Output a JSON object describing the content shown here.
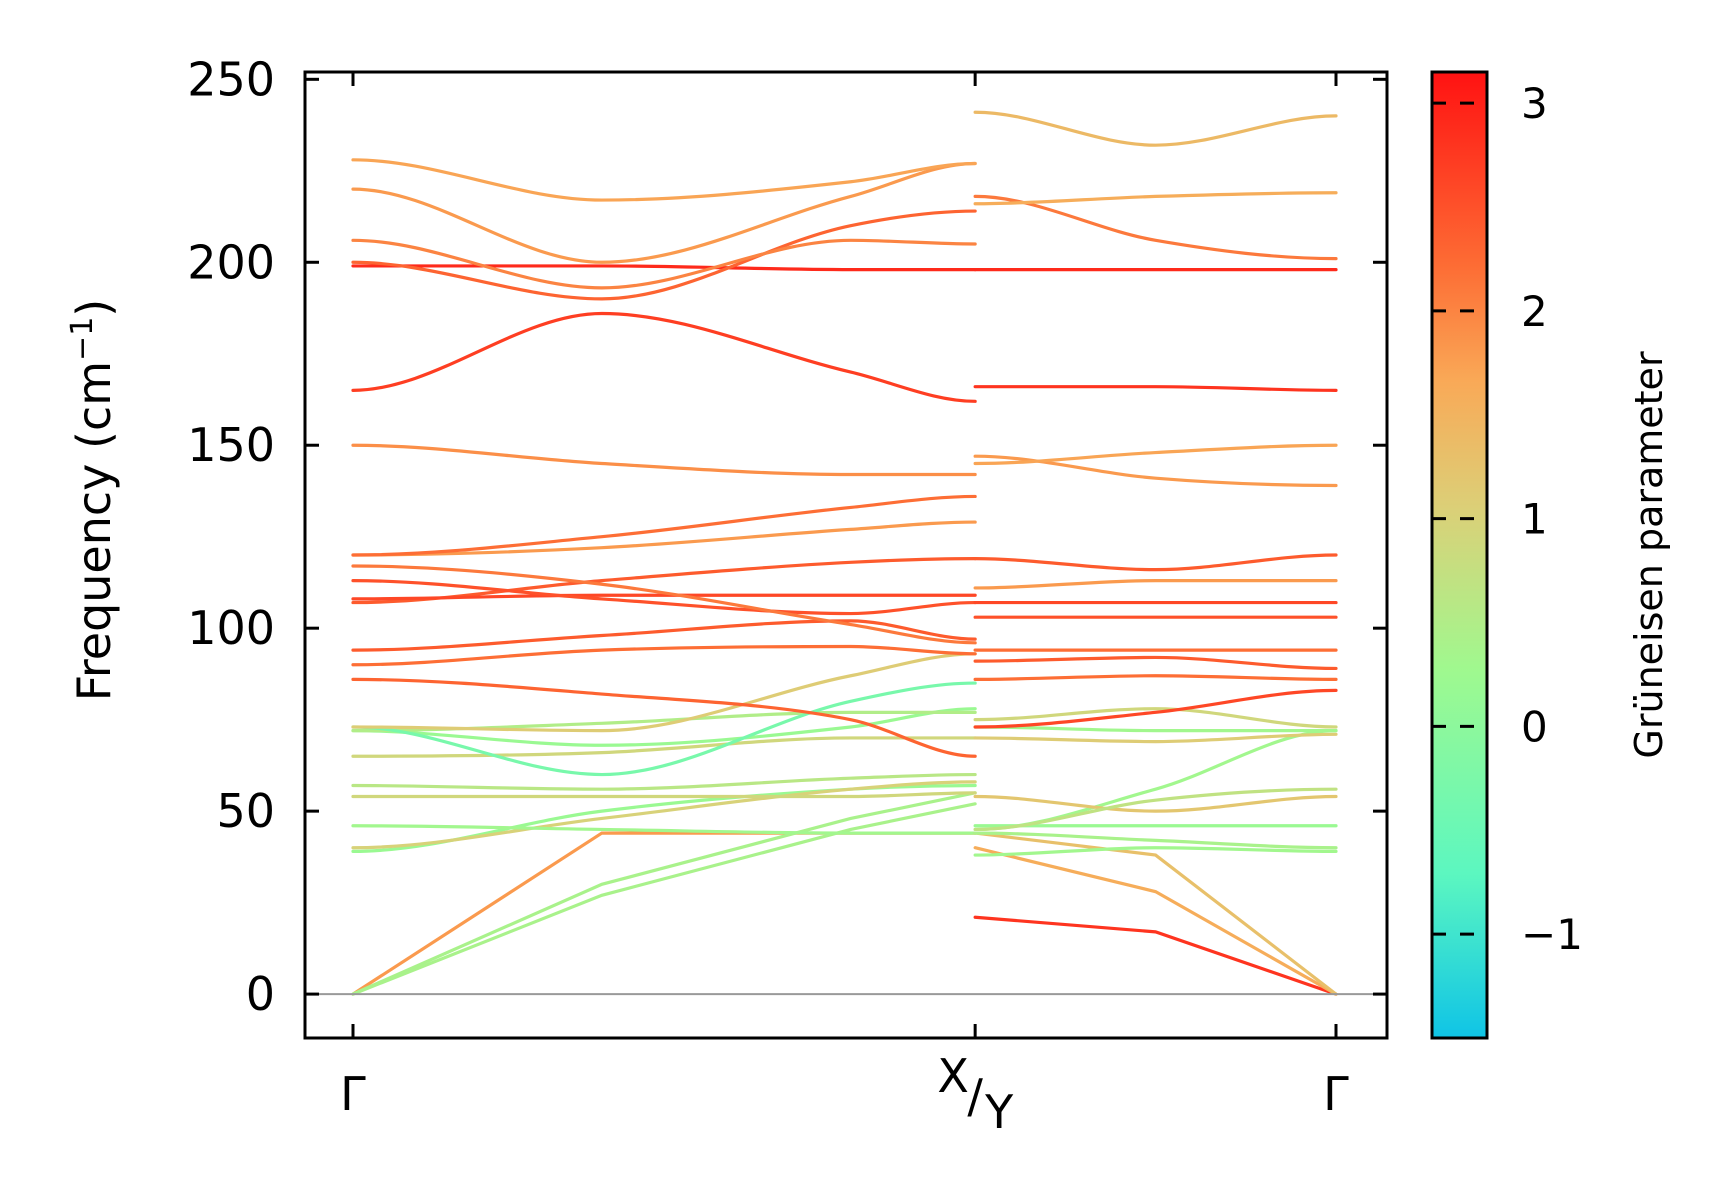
{
  "chart_data": {
    "type": "line",
    "title": "",
    "ylabel": "Frequency (cm",
    "ylabel_sup": "−1",
    "ylabel_end": ")",
    "ylim": [
      -12,
      252
    ],
    "yticks": [
      0,
      50,
      100,
      150,
      200,
      250
    ],
    "xtick_labels": [
      "Γ",
      "X",
      "Y",
      "Γ"
    ],
    "x_break": 1.0,
    "x_range": [
      0,
      1.58
    ],
    "colorbar": {
      "label": "Grüneisen parameter",
      "range": [
        -1.5,
        3.15
      ],
      "ticks": [
        -1,
        0,
        1,
        2,
        3
      ],
      "tick_labels": [
        "−1",
        "0",
        "1",
        "2",
        "3"
      ],
      "colormap": [
        "#0fc4e6",
        "#5cf7c0",
        "#9ff98f",
        "#dccf77",
        "#f9a957",
        "#fd6c34",
        "#ff1212"
      ]
    },
    "series": [
      {
        "segment": 1,
        "g": 1.8,
        "x": [
          0,
          0.4,
          0.8,
          1.0
        ],
        "y": [
          0,
          44,
          44,
          44
        ]
      },
      {
        "segment": 1,
        "g": 0.4,
        "x": [
          0,
          0.4,
          0.8,
          1.0
        ],
        "y": [
          0,
          30,
          48,
          55
        ]
      },
      {
        "segment": 1,
        "g": 0.4,
        "x": [
          0,
          0.4,
          0.8,
          1.0
        ],
        "y": [
          0,
          27,
          45,
          52
        ]
      },
      {
        "segment": 1,
        "g": 0.2,
        "x": [
          0,
          0.4,
          0.8,
          1.0
        ],
        "y": [
          39,
          50,
          56,
          57
        ]
      },
      {
        "segment": 1,
        "g": 1.0,
        "x": [
          0,
          0.4,
          0.8,
          1.0
        ],
        "y": [
          40,
          48,
          56,
          58
        ]
      },
      {
        "segment": 1,
        "g": 0.3,
        "x": [
          0,
          0.4,
          0.8,
          1.0
        ],
        "y": [
          46,
          45,
          44,
          44
        ]
      },
      {
        "segment": 1,
        "g": 0.9,
        "x": [
          0,
          0.4,
          0.8,
          1.0
        ],
        "y": [
          54,
          54,
          54,
          55
        ]
      },
      {
        "segment": 1,
        "g": 0.6,
        "x": [
          0,
          0.4,
          0.8,
          1.0
        ],
        "y": [
          57,
          56,
          59,
          60
        ]
      },
      {
        "segment": 1,
        "g": 0.9,
        "x": [
          0,
          0.4,
          0.8,
          1.0
        ],
        "y": [
          65,
          66,
          70,
          70
        ]
      },
      {
        "segment": 1,
        "g": 0.2,
        "x": [
          0,
          0.4,
          0.8,
          1.0
        ],
        "y": [
          72,
          68,
          73,
          78
        ]
      },
      {
        "segment": 1,
        "g": 0.5,
        "x": [
          0,
          0.4,
          0.8,
          1.0
        ],
        "y": [
          72,
          74,
          77,
          77
        ]
      },
      {
        "segment": 1,
        "g": -0.3,
        "x": [
          0,
          0.4,
          0.8,
          1.0
        ],
        "y": [
          73,
          60,
          80,
          85
        ]
      },
      {
        "segment": 1,
        "g": 1.1,
        "x": [
          0,
          0.4,
          0.8,
          1.0
        ],
        "y": [
          73,
          72,
          87,
          93
        ]
      },
      {
        "segment": 1,
        "g": 2.3,
        "x": [
          0,
          0.4,
          0.8,
          1.0
        ],
        "y": [
          86,
          82,
          75,
          65
        ]
      },
      {
        "segment": 1,
        "g": 2.2,
        "x": [
          0,
          0.4,
          0.8,
          1.0
        ],
        "y": [
          90,
          94,
          95,
          93
        ]
      },
      {
        "segment": 1,
        "g": 2.4,
        "x": [
          0,
          0.4,
          0.8,
          1.0
        ],
        "y": [
          94,
          98,
          102,
          97
        ]
      },
      {
        "segment": 1,
        "g": 2.4,
        "x": [
          0,
          0.4,
          0.8,
          1.0
        ],
        "y": [
          107,
          113,
          118,
          119
        ]
      },
      {
        "segment": 1,
        "g": 2.6,
        "x": [
          0,
          0.4,
          0.8,
          1.0
        ],
        "y": [
          108,
          109,
          109,
          109
        ]
      },
      {
        "segment": 1,
        "g": 2.5,
        "x": [
          0,
          0.4,
          0.8,
          1.0
        ],
        "y": [
          113,
          108,
          104,
          107
        ]
      },
      {
        "segment": 1,
        "g": 2.1,
        "x": [
          0,
          0.4,
          0.8,
          1.0
        ],
        "y": [
          117,
          112,
          101,
          96
        ]
      },
      {
        "segment": 1,
        "g": 1.8,
        "x": [
          0,
          0.4,
          0.8,
          1.0
        ],
        "y": [
          120,
          122,
          127,
          129
        ]
      },
      {
        "segment": 1,
        "g": 2.2,
        "x": [
          0,
          0.4,
          0.8,
          1.0
        ],
        "y": [
          120,
          125,
          133,
          136
        ]
      },
      {
        "segment": 1,
        "g": 1.9,
        "x": [
          0,
          0.4,
          0.8,
          1.0
        ],
        "y": [
          150,
          145,
          142,
          142
        ]
      },
      {
        "segment": 1,
        "g": 2.7,
        "x": [
          0,
          0.4,
          0.8,
          1.0
        ],
        "y": [
          165,
          186,
          170,
          162
        ]
      },
      {
        "segment": 1,
        "g": 2.9,
        "x": [
          0,
          0.4,
          0.8,
          1.0
        ],
        "y": [
          199,
          199,
          198,
          198
        ]
      },
      {
        "segment": 1,
        "g": 2.3,
        "x": [
          0,
          0.4,
          0.8,
          1.0
        ],
        "y": [
          200,
          190,
          210,
          214
        ]
      },
      {
        "segment": 1,
        "g": 2.0,
        "x": [
          0,
          0.4,
          0.8,
          1.0
        ],
        "y": [
          206,
          193,
          206,
          205
        ]
      },
      {
        "segment": 1,
        "g": 1.8,
        "x": [
          0,
          0.4,
          0.8,
          1.0
        ],
        "y": [
          220,
          200,
          218,
          227
        ]
      },
      {
        "segment": 1,
        "g": 1.7,
        "x": [
          0,
          0.4,
          0.8,
          1.0
        ],
        "y": [
          228,
          217,
          222,
          227
        ]
      },
      {
        "segment": 2,
        "g": 2.8,
        "x": [
          1.0,
          1.29,
          1.58
        ],
        "y": [
          21,
          17,
          0
        ]
      },
      {
        "segment": 2,
        "g": 1.6,
        "x": [
          1.0,
          1.29,
          1.58
        ],
        "y": [
          40,
          28,
          0
        ]
      },
      {
        "segment": 2,
        "g": 1.3,
        "x": [
          1.0,
          1.29,
          1.58
        ],
        "y": [
          44,
          38,
          0
        ]
      },
      {
        "segment": 2,
        "g": 0.3,
        "x": [
          1.0,
          1.29,
          1.58
        ],
        "y": [
          38,
          40,
          39
        ]
      },
      {
        "segment": 2,
        "g": 0.4,
        "x": [
          1.0,
          1.29,
          1.58
        ],
        "y": [
          44,
          42,
          40
        ]
      },
      {
        "segment": 2,
        "g": 0.2,
        "x": [
          1.0,
          1.29,
          1.58
        ],
        "y": [
          46,
          46,
          46
        ]
      },
      {
        "segment": 2,
        "g": 0.3,
        "x": [
          1.0,
          1.29,
          1.58
        ],
        "y": [
          45,
          56,
          72
        ]
      },
      {
        "segment": 2,
        "g": 1.2,
        "x": [
          1.0,
          1.29,
          1.58
        ],
        "y": [
          54,
          50,
          54
        ]
      },
      {
        "segment": 2,
        "g": 0.7,
        "x": [
          1.0,
          1.29,
          1.58
        ],
        "y": [
          45,
          53,
          56
        ]
      },
      {
        "segment": 2,
        "g": 1.1,
        "x": [
          1.0,
          1.29,
          1.58
        ],
        "y": [
          70,
          69,
          71
        ]
      },
      {
        "segment": 2,
        "g": 0.3,
        "x": [
          1.0,
          1.29,
          1.58
        ],
        "y": [
          73,
          72,
          72
        ]
      },
      {
        "segment": 2,
        "g": 0.9,
        "x": [
          1.0,
          1.29,
          1.58
        ],
        "y": [
          75,
          78,
          73
        ]
      },
      {
        "segment": 2,
        "g": 2.6,
        "x": [
          1.0,
          1.29,
          1.58
        ],
        "y": [
          73,
          77,
          83
        ]
      },
      {
        "segment": 2,
        "g": 2.2,
        "x": [
          1.0,
          1.29,
          1.58
        ],
        "y": [
          86,
          87,
          86
        ]
      },
      {
        "segment": 2,
        "g": 2.4,
        "x": [
          1.0,
          1.29,
          1.58
        ],
        "y": [
          91,
          92,
          89
        ]
      },
      {
        "segment": 2,
        "g": 2.2,
        "x": [
          1.0,
          1.29,
          1.58
        ],
        "y": [
          94,
          94,
          94
        ]
      },
      {
        "segment": 2,
        "g": 2.5,
        "x": [
          1.0,
          1.29,
          1.58
        ],
        "y": [
          103,
          103,
          103
        ]
      },
      {
        "segment": 2,
        "g": 2.6,
        "x": [
          1.0,
          1.29,
          1.58
        ],
        "y": [
          107,
          107,
          107
        ]
      },
      {
        "segment": 2,
        "g": 1.8,
        "x": [
          1.0,
          1.29,
          1.58
        ],
        "y": [
          111,
          113,
          113
        ]
      },
      {
        "segment": 2,
        "g": 2.4,
        "x": [
          1.0,
          1.29,
          1.58
        ],
        "y": [
          119,
          116,
          120
        ]
      },
      {
        "segment": 2,
        "g": 1.8,
        "x": [
          1.0,
          1.29,
          1.58
        ],
        "y": [
          147,
          141,
          139
        ]
      },
      {
        "segment": 2,
        "g": 1.7,
        "x": [
          1.0,
          1.29,
          1.58
        ],
        "y": [
          145,
          148,
          150
        ]
      },
      {
        "segment": 2,
        "g": 2.8,
        "x": [
          1.0,
          1.29,
          1.58
        ],
        "y": [
          166,
          166,
          165
        ]
      },
      {
        "segment": 2,
        "g": 2.9,
        "x": [
          1.0,
          1.29,
          1.58
        ],
        "y": [
          198,
          198,
          198
        ]
      },
      {
        "segment": 2,
        "g": 2.1,
        "x": [
          1.0,
          1.29,
          1.58
        ],
        "y": [
          218,
          206,
          201
        ]
      },
      {
        "segment": 2,
        "g": 1.6,
        "x": [
          1.0,
          1.29,
          1.58
        ],
        "y": [
          216,
          218,
          219
        ]
      },
      {
        "segment": 2,
        "g": 1.4,
        "x": [
          1.0,
          1.29,
          1.58
        ],
        "y": [
          241,
          232,
          240
        ]
      }
    ]
  }
}
